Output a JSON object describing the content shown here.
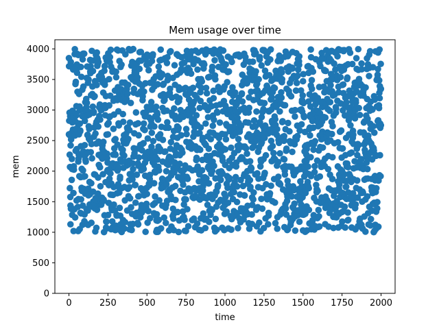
{
  "colors": {
    "marker": "#1f77b4",
    "axis": "#000000",
    "background": "#ffffff"
  },
  "chart_data": {
    "type": "scatter",
    "title": "Mem usage over time",
    "xlabel": "time",
    "ylabel": "mem",
    "xlim": [
      -90,
      2090
    ],
    "ylim": [
      0,
      4150
    ],
    "xticks": [
      0,
      250,
      500,
      750,
      1000,
      1250,
      1500,
      1750,
      2000
    ],
    "xtick_labels": [
      "0",
      "250",
      "500",
      "750",
      "1000",
      "1250",
      "1500",
      "1750",
      "2000"
    ],
    "yticks": [
      0,
      500,
      1000,
      1500,
      2000,
      2500,
      3000,
      3500,
      4000
    ],
    "ytick_labels": [
      "0",
      "500",
      "1000",
      "1500",
      "2000",
      "2500",
      "3000",
      "3500",
      "4000"
    ],
    "grid": false,
    "legend": "none",
    "marker_shape": "circle",
    "point_count": 2000,
    "x_range": [
      0,
      1999
    ],
    "y_range": [
      1000,
      4000
    ],
    "distribution": "uniform random mem values between 1000 and 4000 for each integer time step 0–1999",
    "sample_points": [
      {
        "x": 0,
        "y": 3850
      },
      {
        "x": 10,
        "y": 1130
      },
      {
        "x": 30,
        "y": 1020
      },
      {
        "x": 60,
        "y": 3900
      },
      {
        "x": 120,
        "y": 2310
      },
      {
        "x": 250,
        "y": 2000
      },
      {
        "x": 300,
        "y": 1050
      },
      {
        "x": 400,
        "y": 3980
      },
      {
        "x": 500,
        "y": 3050
      },
      {
        "x": 750,
        "y": 1020
      },
      {
        "x": 880,
        "y": 3990
      },
      {
        "x": 1000,
        "y": 2600
      },
      {
        "x": 1250,
        "y": 3980
      },
      {
        "x": 1500,
        "y": 1030
      },
      {
        "x": 1550,
        "y": 3990
      },
      {
        "x": 1750,
        "y": 2000
      },
      {
        "x": 1900,
        "y": 1010
      },
      {
        "x": 1990,
        "y": 3990
      },
      {
        "x": 1999,
        "y": 2750
      }
    ]
  }
}
